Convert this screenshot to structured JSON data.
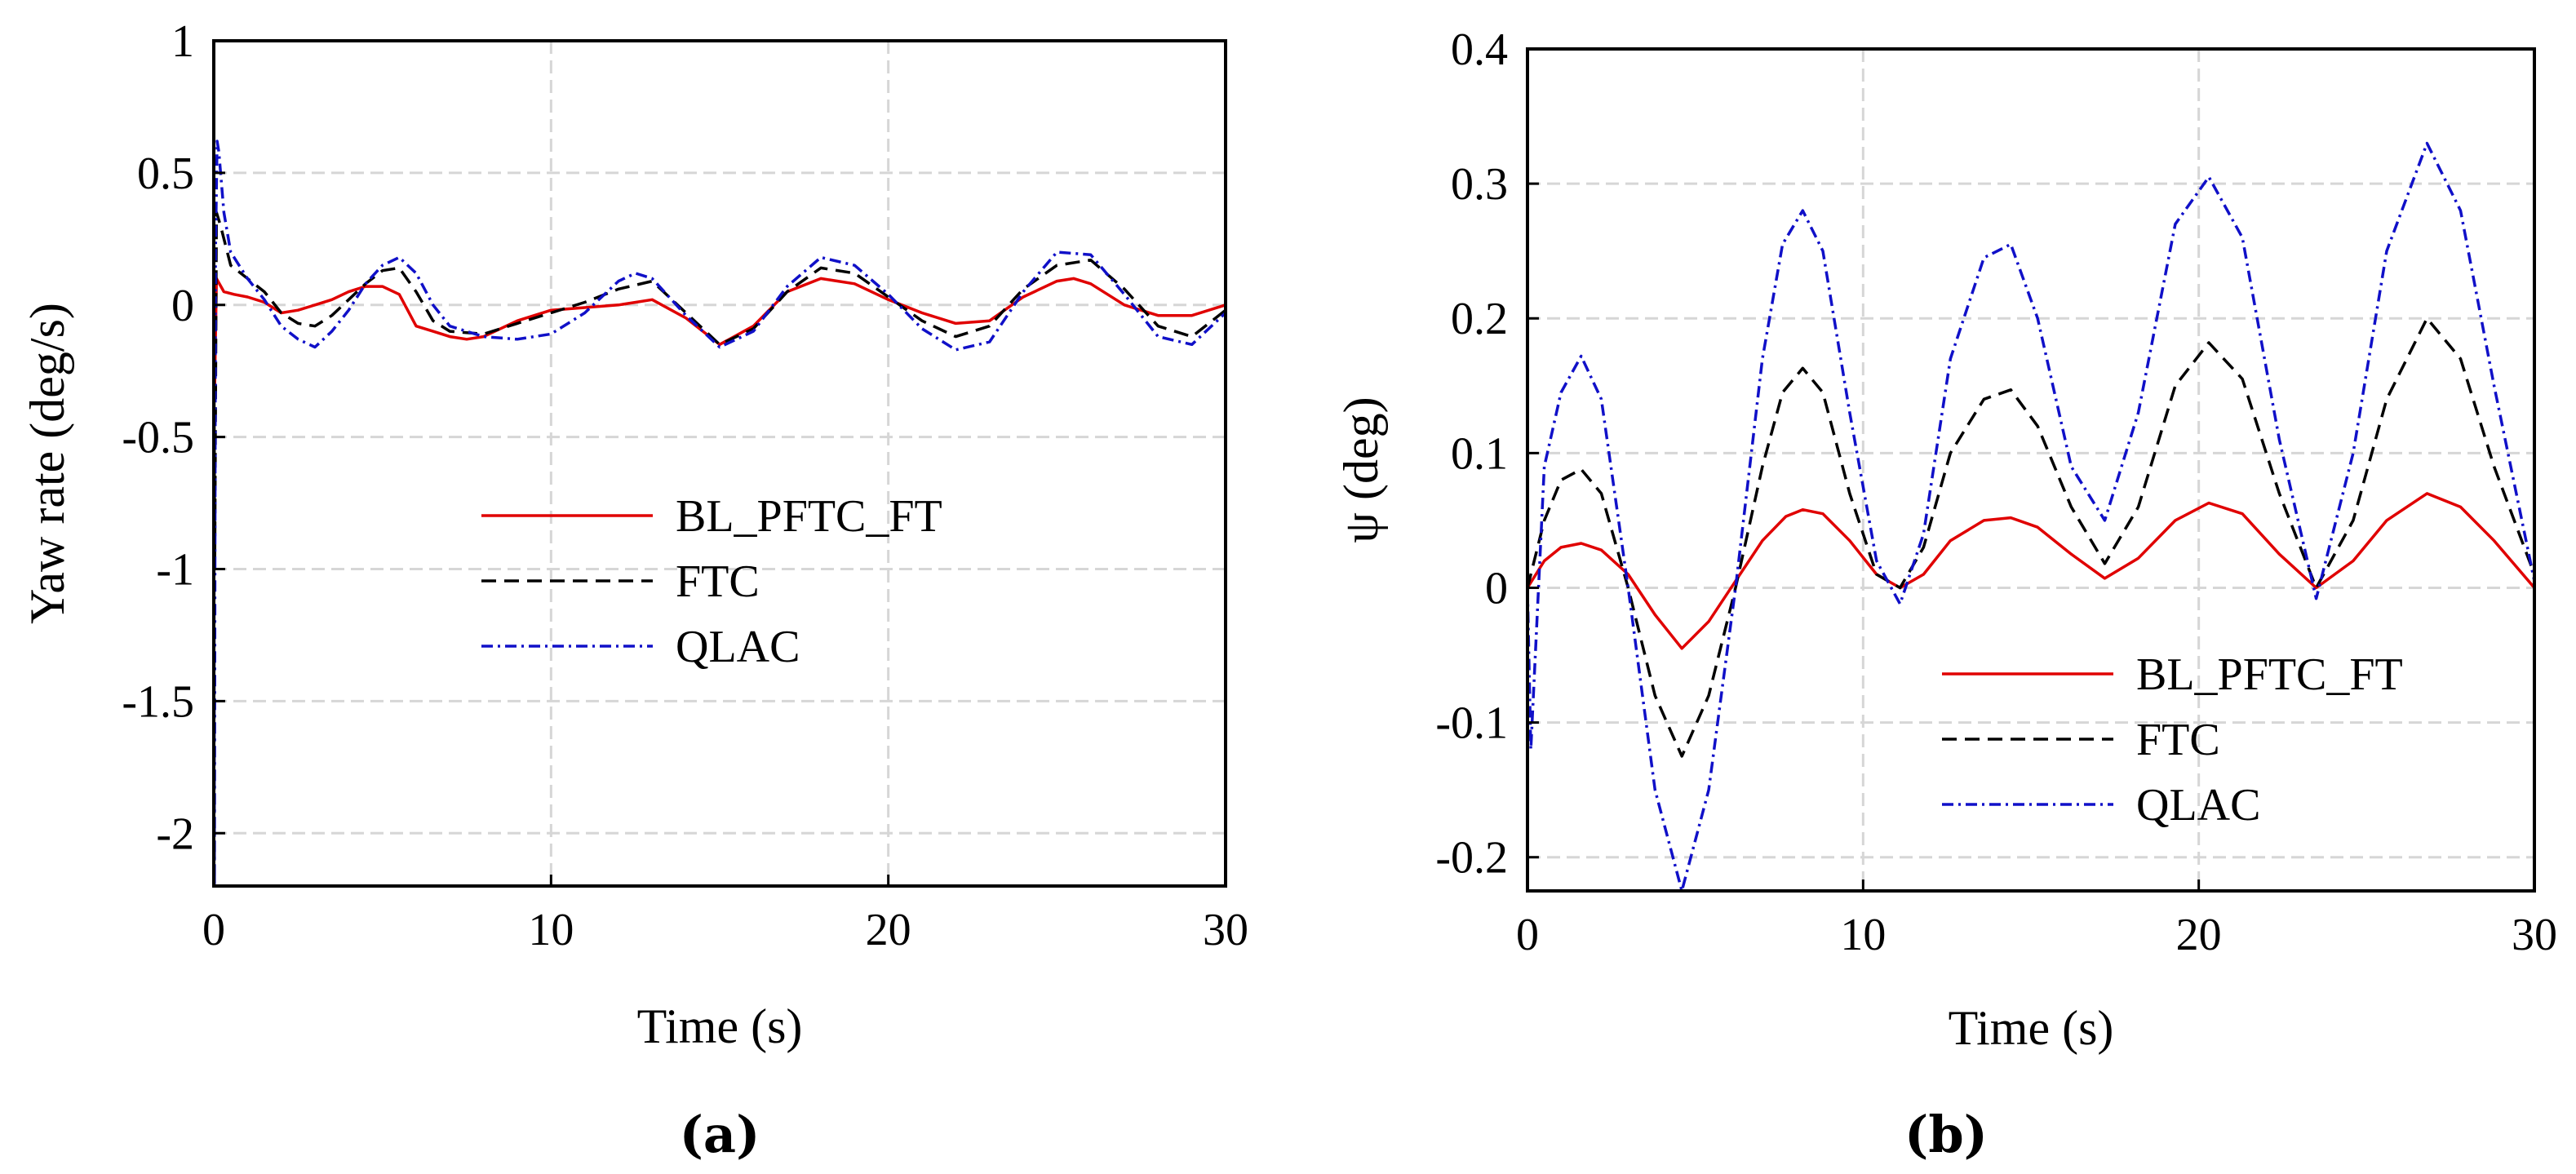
{
  "chart_data": [
    {
      "type": "line",
      "panel_label": "(a)",
      "xlabel": "Time (s)",
      "ylabel": "Yaw rate (deg/s)",
      "xlim": [
        0,
        30
      ],
      "ylim": [
        -2.2,
        1
      ],
      "xticks": [
        "0",
        "10",
        "20",
        "30"
      ],
      "yticks": [
        "1",
        "0.5",
        "0",
        "-0.5",
        "-1",
        "-1.5",
        "-2"
      ],
      "grid": true,
      "legend_position": "center-right",
      "series": [
        {
          "name": "BL_PFTC_FT",
          "color": "#e00000",
          "style": "solid",
          "x": [
            0,
            0.03,
            0.08,
            0.3,
            0.6,
            1,
            1.5,
            2,
            2.5,
            3,
            3.5,
            4,
            4.5,
            5,
            5.5,
            6,
            6.5,
            7,
            7.5,
            8,
            9,
            10,
            11,
            12,
            13,
            14,
            15,
            16,
            17,
            18,
            19,
            20,
            21,
            22,
            23,
            24,
            25,
            25.5,
            26,
            27,
            28,
            29,
            30
          ],
          "y": [
            0,
            -0.3,
            0.1,
            0.05,
            0.04,
            0.03,
            0.01,
            -0.03,
            -0.02,
            0.0,
            0.02,
            0.05,
            0.07,
            0.07,
            0.04,
            -0.08,
            -0.1,
            -0.12,
            -0.13,
            -0.12,
            -0.06,
            -0.02,
            -0.01,
            0.0,
            0.02,
            -0.05,
            -0.15,
            -0.08,
            0.05,
            0.1,
            0.08,
            0.02,
            -0.03,
            -0.07,
            -0.06,
            0.03,
            0.09,
            0.1,
            0.08,
            0.0,
            -0.04,
            -0.04,
            0.0
          ]
        },
        {
          "name": "FTC",
          "color": "#000000",
          "style": "dashed",
          "x": [
            0,
            0.03,
            0.08,
            0.2,
            0.5,
            1,
            1.5,
            2,
            2.5,
            3,
            3.5,
            4,
            4.5,
            5,
            5.5,
            6,
            6.5,
            7,
            8,
            9,
            10,
            11,
            12,
            13,
            14,
            15,
            16,
            17,
            18,
            19,
            20,
            21,
            22,
            23,
            24,
            25,
            26,
            27,
            28,
            29,
            30
          ],
          "y": [
            0,
            -1.0,
            0.35,
            0.3,
            0.15,
            0.1,
            0.05,
            -0.03,
            -0.07,
            -0.08,
            -0.04,
            0.02,
            0.08,
            0.13,
            0.14,
            0.05,
            -0.06,
            -0.1,
            -0.11,
            -0.07,
            -0.03,
            0.01,
            0.06,
            0.09,
            -0.03,
            -0.15,
            -0.09,
            0.05,
            0.14,
            0.12,
            0.03,
            -0.06,
            -0.12,
            -0.08,
            0.06,
            0.15,
            0.17,
            0.06,
            -0.08,
            -0.12,
            -0.02
          ]
        },
        {
          "name": "QLAC",
          "color": "#1010c8",
          "style": "dashdot",
          "x": [
            0,
            0.02,
            0.05,
            0.1,
            0.15,
            0.3,
            0.5,
            1,
            1.5,
            2,
            2.5,
            3,
            3.5,
            4,
            4.5,
            5,
            5.5,
            6,
            6.5,
            7,
            8,
            9,
            10,
            11,
            12,
            12.5,
            13,
            14,
            15,
            16,
            17,
            18,
            19,
            20,
            21,
            22,
            23,
            24,
            25,
            26,
            27,
            28,
            29,
            30
          ],
          "y": [
            0,
            -2.2,
            0.2,
            0.62,
            0.58,
            0.35,
            0.2,
            0.1,
            0.02,
            -0.08,
            -0.13,
            -0.16,
            -0.1,
            -0.02,
            0.08,
            0.15,
            0.18,
            0.12,
            0.0,
            -0.08,
            -0.12,
            -0.13,
            -0.11,
            -0.03,
            0.09,
            0.12,
            0.1,
            -0.04,
            -0.16,
            -0.1,
            0.07,
            0.18,
            0.15,
            0.04,
            -0.09,
            -0.17,
            -0.14,
            0.05,
            0.2,
            0.19,
            0.04,
            -0.12,
            -0.15,
            -0.03
          ]
        }
      ]
    },
    {
      "type": "line",
      "panel_label": "(b)",
      "xlabel": "Time (s)",
      "ylabel": "ψ (deg)",
      "xlim": [
        0,
        30
      ],
      "ylim": [
        -0.225,
        0.4
      ],
      "xticks": [
        "0",
        "10",
        "20",
        "30"
      ],
      "yticks": [
        "0.4",
        "0.3",
        "0.2",
        "0.1",
        "0",
        "-0.1",
        "-0.2"
      ],
      "grid": true,
      "legend_position": "bottom-right",
      "series": [
        {
          "name": "BL_PFTC_FT",
          "color": "#e00000",
          "style": "solid",
          "x": [
            0,
            0.5,
            1,
            1.6,
            2.2,
            3,
            3.8,
            4.6,
            5.4,
            6.2,
            7,
            7.7,
            8.2,
            8.8,
            9.6,
            10.4,
            11.1,
            11.8,
            12.6,
            13.6,
            14.4,
            15.2,
            16.2,
            17.2,
            18.2,
            19.3,
            20.3,
            21.3,
            22.4,
            23.5,
            24.6,
            25.6,
            26.8,
            27.8,
            28.8,
            30
          ],
          "y": [
            0,
            0.02,
            0.03,
            0.033,
            0.028,
            0.01,
            -0.02,
            -0.045,
            -0.025,
            0.005,
            0.035,
            0.053,
            0.058,
            0.055,
            0.035,
            0.01,
            0.0,
            0.01,
            0.035,
            0.05,
            0.052,
            0.045,
            0.025,
            0.007,
            0.022,
            0.05,
            0.063,
            0.055,
            0.025,
            0.0,
            0.02,
            0.05,
            0.07,
            0.06,
            0.035,
            0.0
          ]
        },
        {
          "name": "FTC",
          "color": "#000000",
          "style": "dashed",
          "x": [
            0,
            0.5,
            1,
            1.6,
            2.2,
            3,
            3.8,
            4.6,
            5.4,
            6.2,
            7,
            7.6,
            8.2,
            8.8,
            9.6,
            10.4,
            11.1,
            11.8,
            12.6,
            13.6,
            14.4,
            15.2,
            16.2,
            17.2,
            18.2,
            19.3,
            20.3,
            21.3,
            22.4,
            23.5,
            24.6,
            25.6,
            26.8,
            27.8,
            28.8,
            30
          ],
          "y": [
            0,
            0.05,
            0.08,
            0.088,
            0.07,
            0.0,
            -0.08,
            -0.125,
            -0.08,
            0.0,
            0.09,
            0.145,
            0.163,
            0.145,
            0.07,
            0.01,
            0.0,
            0.03,
            0.1,
            0.14,
            0.147,
            0.12,
            0.06,
            0.018,
            0.06,
            0.15,
            0.182,
            0.155,
            0.07,
            0.0,
            0.05,
            0.14,
            0.2,
            0.17,
            0.09,
            0.01
          ]
        },
        {
          "name": "QLAC",
          "color": "#1010c8",
          "style": "dashdot",
          "x": [
            0,
            0.1,
            0.5,
            1,
            1.6,
            2.2,
            3,
            3.8,
            4.6,
            5.4,
            6.2,
            7,
            7.6,
            8.2,
            8.8,
            9.6,
            10.4,
            11.1,
            11.8,
            12.6,
            13.6,
            14.4,
            15.2,
            16.2,
            17.2,
            18.2,
            19.3,
            20.3,
            21.3,
            22.4,
            23.5,
            24.6,
            25.6,
            26.8,
            27.8,
            28.8,
            30
          ],
          "y": [
            0,
            -0.12,
            0.09,
            0.145,
            0.172,
            0.14,
            0.0,
            -0.15,
            -0.225,
            -0.15,
            0.0,
            0.17,
            0.255,
            0.28,
            0.25,
            0.13,
            0.02,
            -0.012,
            0.04,
            0.17,
            0.245,
            0.255,
            0.2,
            0.09,
            0.05,
            0.13,
            0.27,
            0.305,
            0.26,
            0.11,
            -0.008,
            0.1,
            0.25,
            0.33,
            0.28,
            0.15,
            0.005
          ]
        }
      ]
    }
  ]
}
